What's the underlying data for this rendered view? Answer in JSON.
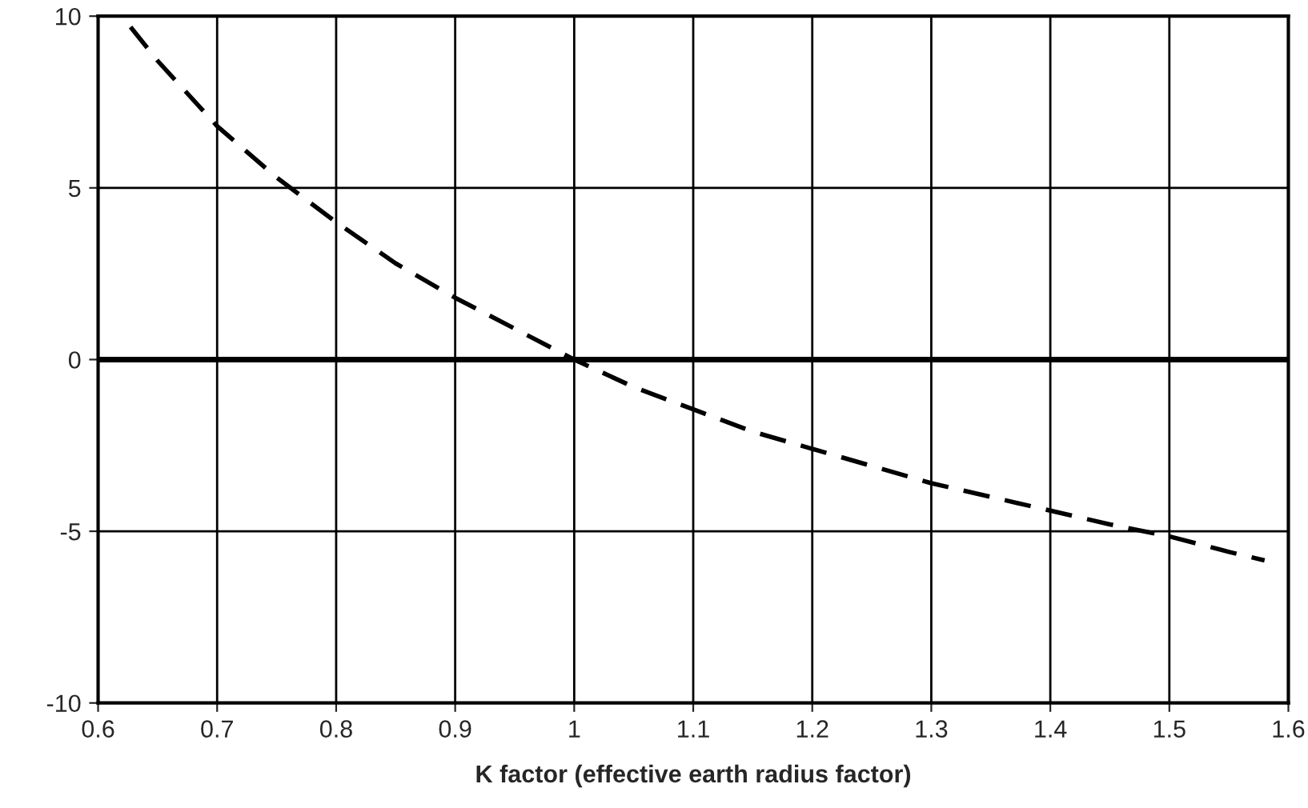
{
  "chart_data": {
    "type": "line",
    "xlabel": "K factor (effective earth radius factor)",
    "x": [
      0.62,
      0.65,
      0.7,
      0.75,
      0.8,
      0.85,
      0.9,
      0.95,
      1.0,
      1.05,
      1.1,
      1.15,
      1.2,
      1.25,
      1.3,
      1.35,
      1.4,
      1.45,
      1.5,
      1.55,
      1.58
    ],
    "series": [
      {
        "color": "#000000",
        "values": [
          10.0,
          8.7,
          6.8,
          5.3,
          4.0,
          2.8,
          1.8,
          0.9,
          0.0,
          -0.8,
          -1.45,
          -2.1,
          -2.6,
          -3.1,
          -3.6,
          -4.0,
          -4.4,
          -4.8,
          -5.15,
          -5.6,
          -5.85
        ]
      }
    ],
    "xlim": [
      0.6,
      1.6
    ],
    "xticks": [
      0.6,
      0.7,
      0.8,
      0.9,
      1,
      1.1,
      1.2,
      1.3,
      1.4,
      1.5,
      1.6
    ],
    "ylim": [
      -10,
      10
    ],
    "yticks": [
      -10,
      -5,
      0,
      5,
      10
    ],
    "ref_lines": [
      {
        "axis": "y",
        "value": 0,
        "color": "#000000"
      }
    ],
    "grid": true,
    "line_style": "dashed",
    "marker": "none",
    "legend": false
  }
}
